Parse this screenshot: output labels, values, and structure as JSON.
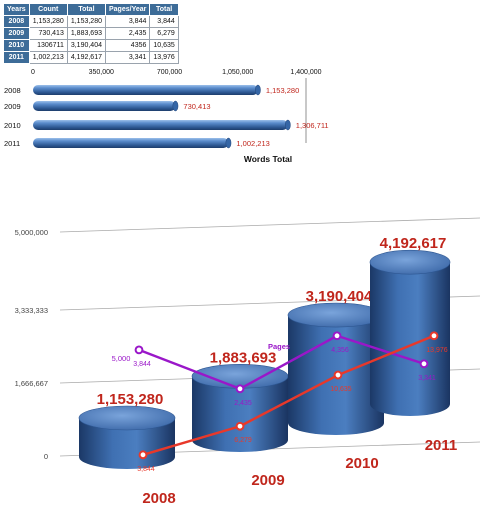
{
  "table": {
    "headers": [
      "Years",
      "Count",
      "Total",
      "Pages/Year",
      "Total"
    ],
    "rows": [
      [
        "2008",
        "1,153,280",
        "1,153,280",
        "3,844",
        "3,844"
      ],
      [
        "2009",
        "730,413",
        "1,883,693",
        "2,435",
        "6,279"
      ],
      [
        "2010",
        "1306711",
        "3,190,404",
        "4356",
        "10,635"
      ],
      [
        "2011",
        "1,002,213",
        "4,192,617",
        "3,341",
        "13,976"
      ]
    ]
  },
  "chart_data": [
    {
      "type": "bar",
      "orientation": "horizontal",
      "title": "",
      "xlabel": "Words Total",
      "ylabel": "",
      "categories": [
        "2008",
        "2009",
        "2010",
        "2011"
      ],
      "values": [
        1153280,
        730413,
        1306711,
        1002213
      ],
      "value_labels": [
        "1,153,280",
        "730,413",
        "1,306,711",
        "1,002,213"
      ],
      "xlim": [
        0,
        1400000
      ],
      "xticks": [
        "0",
        "350,000",
        "700,000",
        "1,050,000",
        "1,400,000"
      ],
      "colors": {
        "bar": "#3e6fae",
        "value_label": "#c0261c",
        "text": "#111111"
      }
    },
    {
      "type": "bar",
      "style": "3d-cylinder",
      "title": "",
      "xlabel": "",
      "ylabel": "",
      "categories": [
        "2008",
        "2009",
        "2010",
        "2011"
      ],
      "values": [
        1153280,
        1883693,
        3190404,
        4192617
      ],
      "value_labels": [
        "1,153,280",
        "1,883,693",
        "3,190,404",
        "4,192,617"
      ],
      "ylim": [
        0,
        5000000
      ],
      "yticks": [
        "0",
        "1,666,667",
        "3,333,333",
        "5,000,000"
      ],
      "lines": [
        {
          "name": "Pages",
          "values": [
            3844,
            2435,
            4356,
            3341
          ],
          "value_labels": [
            "3,844",
            "2,435",
            "4,356",
            "3,341"
          ],
          "color": "#9a17c9",
          "axis_label": "5,000",
          "axis_max": 5000
        },
        {
          "values": [
            3844,
            6279,
            10635,
            13976
          ],
          "value_labels": [
            "3,844",
            "6,279",
            "10,635",
            "13,976"
          ],
          "color": "#e8382a",
          "axis_max": 16000
        }
      ],
      "colors": {
        "bar": "#3c6aa9",
        "value_label": "#c0261c",
        "category_label": "#c0261c",
        "tick": "#444444"
      }
    }
  ]
}
